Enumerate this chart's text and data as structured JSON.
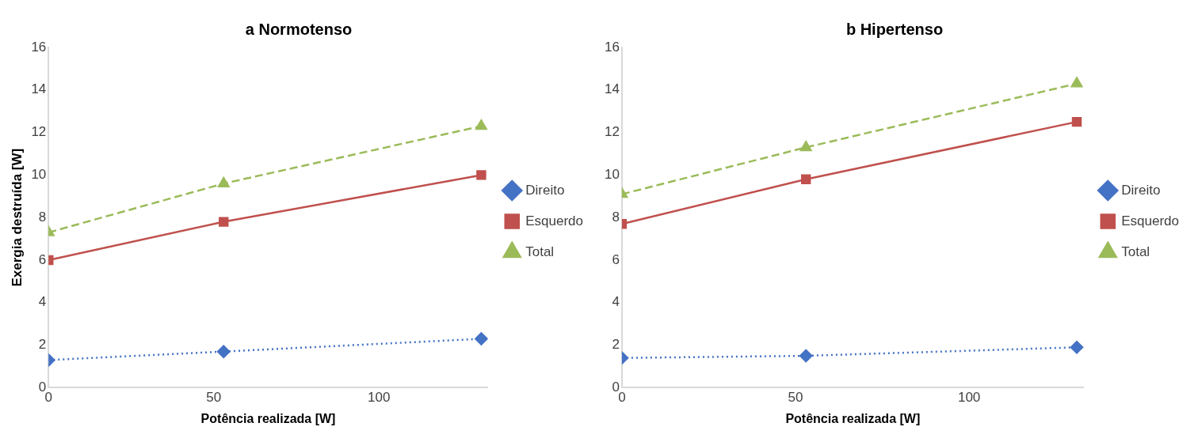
{
  "chart_data": [
    {
      "type": "line",
      "title": "a Normotenso",
      "xlabel": "Potência realizada [W]",
      "ylabel": "Exergia destruída [W]",
      "x": [
        0,
        53,
        131
      ],
      "xlim": [
        0,
        133
      ],
      "xticks": [
        0,
        50,
        100
      ],
      "ylim": [
        0,
        16
      ],
      "yticks": [
        0,
        2,
        4,
        6,
        8,
        10,
        12,
        14,
        16
      ],
      "grid": false,
      "legend": "right",
      "series": [
        {
          "name": "Direito",
          "color": "#4472c4",
          "values": [
            1.3,
            1.7,
            2.3
          ],
          "marker": "diamond",
          "line_style": "dotted"
        },
        {
          "name": "Esquerdo",
          "color": "#c0504d",
          "values": [
            6.0,
            7.8,
            10.0
          ],
          "marker": "square",
          "line_style": "solid"
        },
        {
          "name": "Total",
          "color": "#9bbb59",
          "values": [
            7.3,
            9.6,
            12.3
          ],
          "marker": "triangle",
          "line_style": "dashed"
        }
      ]
    },
    {
      "type": "line",
      "title": "b Hipertenso",
      "xlabel": "Potência realizada [W]",
      "x": [
        0,
        53,
        131
      ],
      "xlim": [
        0,
        133
      ],
      "xticks": [
        0,
        50,
        100
      ],
      "ylim": [
        0,
        16
      ],
      "yticks": [
        0,
        2,
        4,
        6,
        8,
        10,
        12,
        14,
        16
      ],
      "grid": false,
      "legend": "right",
      "series": [
        {
          "name": "Direito",
          "color": "#4472c4",
          "values": [
            1.4,
            1.5,
            1.9
          ],
          "marker": "diamond",
          "line_style": "dotted"
        },
        {
          "name": "Esquerdo",
          "color": "#c0504d",
          "values": [
            7.7,
            9.8,
            12.5
          ],
          "marker": "square",
          "line_style": "solid"
        },
        {
          "name": "Total",
          "color": "#9bbb59",
          "values": [
            9.1,
            11.3,
            14.3
          ],
          "marker": "triangle",
          "line_style": "dashed"
        }
      ]
    }
  ]
}
